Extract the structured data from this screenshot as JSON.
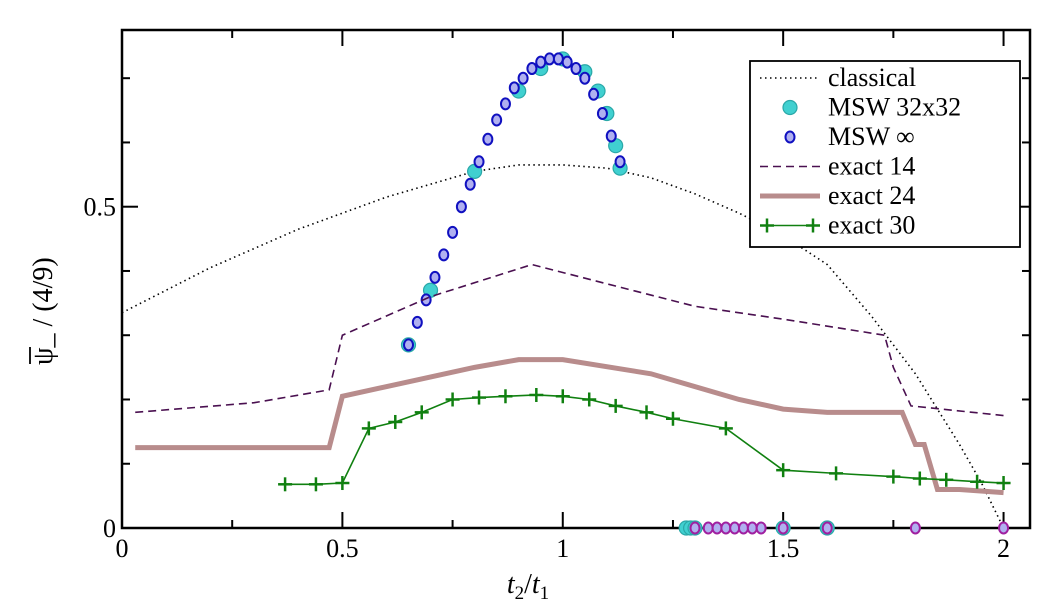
{
  "chart_data": {
    "type": "line",
    "title": "",
    "xlabel": {
      "main": "t",
      "sub1": "2",
      "slash": "/",
      "main2": "t",
      "sub2": "1"
    },
    "ylabel": "ψ_ / (4/9)",
    "xlim": [
      0,
      2.06
    ],
    "ylim": [
      0,
      0.775
    ],
    "x_ticks": [
      0,
      0.5,
      1,
      1.5,
      2
    ],
    "x_tick_labels": [
      "0",
      "0.5",
      "1",
      "1.5",
      "2"
    ],
    "y_ticks": [
      0,
      0.5
    ],
    "y_tick_labels": [
      "0",
      "0.5"
    ],
    "legend_position": "top-right",
    "series": [
      {
        "name": "classical",
        "style": "dotted",
        "color": "#000000",
        "x": [
          0,
          0.2,
          0.4,
          0.6,
          0.8,
          0.9,
          1.0,
          1.1,
          1.2,
          1.3,
          1.4,
          1.5,
          1.6,
          1.7,
          1.8,
          1.9,
          1.95,
          2.0
        ],
        "y": [
          0.335,
          0.405,
          0.465,
          0.515,
          0.555,
          0.565,
          0.565,
          0.56,
          0.545,
          0.52,
          0.49,
          0.455,
          0.41,
          0.33,
          0.24,
          0.13,
          0.07,
          0.0
        ]
      },
      {
        "name": "MSW 32x32",
        "style": "marker-large-circle",
        "color": "#40d0d0",
        "x": [
          0.65,
          0.7,
          0.8,
          0.9,
          0.95,
          1.0,
          1.05,
          1.08,
          1.1,
          1.12,
          1.13,
          1.28,
          1.29,
          1.3,
          1.5,
          1.6
        ],
        "y": [
          0.285,
          0.37,
          0.555,
          0.68,
          0.715,
          0.73,
          0.71,
          0.68,
          0.645,
          0.595,
          0.56,
          0,
          0,
          0,
          0,
          0
        ]
      },
      {
        "name": "MSW ∞",
        "style": "marker-small-circle",
        "color": "#1010c0",
        "x": [
          0.65,
          0.67,
          0.69,
          0.71,
          0.73,
          0.75,
          0.77,
          0.79,
          0.81,
          0.83,
          0.85,
          0.87,
          0.89,
          0.91,
          0.93,
          0.95,
          0.97,
          0.99,
          1.01,
          1.03,
          1.05,
          1.07,
          1.09,
          1.11,
          1.13
        ],
        "y": [
          0.285,
          0.32,
          0.355,
          0.39,
          0.425,
          0.46,
          0.5,
          0.535,
          0.57,
          0.605,
          0.635,
          0.66,
          0.685,
          0.7,
          0.715,
          0.725,
          0.73,
          0.73,
          0.725,
          0.715,
          0.7,
          0.675,
          0.645,
          0.61,
          0.57
        ]
      },
      {
        "name": "exact 14",
        "style": "dashed",
        "color": "#4a1050",
        "x": [
          0.03,
          0.3,
          0.47,
          0.5,
          0.7,
          0.93,
          1.1,
          1.3,
          1.5,
          1.73,
          1.75,
          1.79,
          2.0
        ],
        "y": [
          0.18,
          0.195,
          0.215,
          0.3,
          0.36,
          0.41,
          0.38,
          0.345,
          0.325,
          0.3,
          0.25,
          0.19,
          0.175
        ]
      },
      {
        "name": "exact 24",
        "style": "thick-solid",
        "color": "#b88c8c",
        "x": [
          0.03,
          0.47,
          0.5,
          0.8,
          0.9,
          1.0,
          1.2,
          1.4,
          1.5,
          1.6,
          1.77,
          1.8,
          1.82,
          1.85,
          1.9,
          2.0
        ],
        "y": [
          0.125,
          0.125,
          0.205,
          0.25,
          0.262,
          0.262,
          0.24,
          0.2,
          0.185,
          0.18,
          0.18,
          0.13,
          0.13,
          0.06,
          0.06,
          0.055
        ]
      },
      {
        "name": "exact 30",
        "style": "solid-plus",
        "color": "#108010",
        "x": [
          0.37,
          0.44,
          0.5,
          0.56,
          0.62,
          0.68,
          0.75,
          0.81,
          0.87,
          0.94,
          1.0,
          1.06,
          1.12,
          1.19,
          1.25,
          1.37,
          1.5,
          1.62,
          1.75,
          1.81,
          1.87,
          1.94,
          2.0
        ],
        "y": [
          0.068,
          0.068,
          0.07,
          0.155,
          0.165,
          0.18,
          0.2,
          0.203,
          0.205,
          0.207,
          0.205,
          0.2,
          0.19,
          0.18,
          0.17,
          0.155,
          0.09,
          0.085,
          0.08,
          0.077,
          0.075,
          0.072,
          0.07
        ]
      },
      {
        "name": "zero-markers (purple)",
        "style": "marker-small-circle",
        "color": "#a020a0",
        "legend": false,
        "x": [
          1.3,
          1.33,
          1.35,
          1.37,
          1.39,
          1.41,
          1.43,
          1.45,
          1.5,
          1.6,
          1.8,
          2.0
        ],
        "y": [
          0,
          0,
          0,
          0,
          0,
          0,
          0,
          0,
          0,
          0,
          0,
          0
        ]
      }
    ],
    "legend": [
      {
        "label": "classical",
        "style": "dotted",
        "color": "#000000"
      },
      {
        "label": "MSW 32x32",
        "style": "marker-large-circle",
        "color": "#40d0d0"
      },
      {
        "label": "MSW ∞",
        "style": "marker-small-circle",
        "color": "#1010c0"
      },
      {
        "label": "exact 14",
        "style": "dashed",
        "color": "#4a1050"
      },
      {
        "label": "exact 24",
        "style": "thick-solid",
        "color": "#b88c8c"
      },
      {
        "label": "exact 30",
        "style": "solid-plus",
        "color": "#108010"
      }
    ]
  }
}
